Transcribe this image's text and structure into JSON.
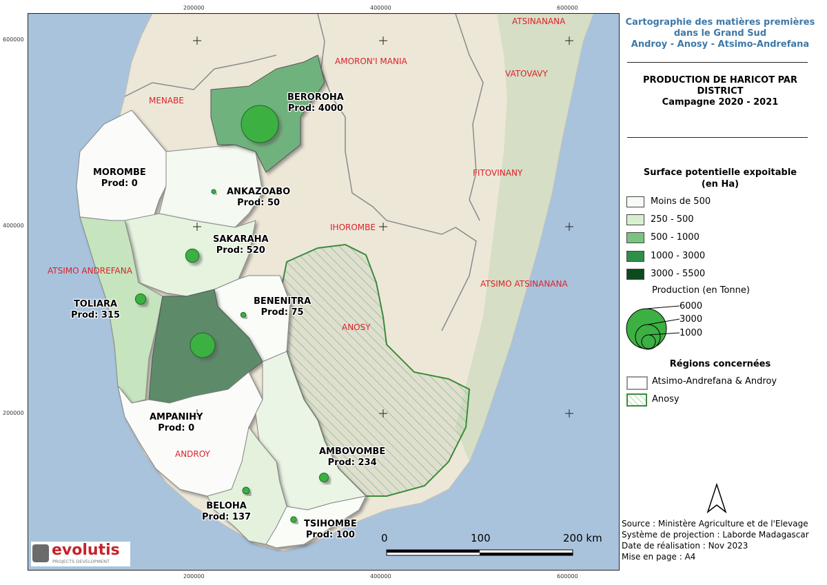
{
  "title": {
    "line1": "Cartographie des matières premières",
    "line2": "dans le Grand Sud",
    "line3": "Androy - Anosy - Atsimo-Andrefana"
  },
  "subtitle": {
    "line1": "PRODUCTION DE HARICOT PAR",
    "line2": "DISTRICT",
    "line3": "Campagne 2020 - 2021"
  },
  "legend": {
    "surface_title_1": "Surface potentielle expoitable",
    "surface_title_2": "(en Ha)",
    "classes": [
      {
        "label": "Moins de 500",
        "color": "#f7fbf5"
      },
      {
        "label": "250 - 500",
        "color": "#d8efcf"
      },
      {
        "label": "500 - 1000",
        "color": "#7cc282"
      },
      {
        "label": "1000 - 3000",
        "color": "#2f8f47"
      },
      {
        "label": "3000 - 5500",
        "color": "#0d4a1e"
      }
    ],
    "production_title": "Production (en Tonne)",
    "production_sizes": [
      "6000",
      "3000",
      "1000"
    ],
    "regions_title": "Régions concernées",
    "regions": [
      {
        "label": "Atsimo-Andrefana & Androy"
      },
      {
        "label": "Anosy"
      }
    ]
  },
  "footer": {
    "source": "Source : Ministère Agriculture et de l'Elevage",
    "projection": "Système de projection : Laborde Madagascar",
    "date": "Date de réalisation : Nov 2023",
    "layout": "Mise en page : A4"
  },
  "scalebar": {
    "s0": "0",
    "s1": "100",
    "s2": "200 km"
  },
  "coords": {
    "top": [
      "200000",
      "400000",
      "600000"
    ],
    "bottom": [
      "200000",
      "400000",
      "600000"
    ],
    "left": [
      "600000",
      "400000",
      "200000"
    ]
  },
  "regions_map": {
    "atsinanana": "ATSINANANA",
    "amoron": "AMORON'I MANIA",
    "vatovavy": "VATOVAVY",
    "menabe": "MENABE",
    "fitovinany": "FITOVINANY",
    "ihorombe": "IHOROMBE",
    "atsimo_andrefana": "ATSIMO ANDREFANA",
    "atsimo_atsinanana": "ATSIMO ATSINANANA",
    "anosy": "ANOSY",
    "androy": "ANDROY"
  },
  "districts": [
    {
      "name": "BEROROHA",
      "prod": "Prod: 4000",
      "value": 4000
    },
    {
      "name": "MOROMBE",
      "prod": "Prod: 0",
      "value": 0
    },
    {
      "name": "ANKAZOABO",
      "prod": "Prod: 50",
      "value": 50
    },
    {
      "name": "SAKARAHA",
      "prod": "Prod: 520",
      "value": 520
    },
    {
      "name": "TOLIARA",
      "prod": "Prod: 315",
      "value": 315
    },
    {
      "name": "BENENITRA",
      "prod": "Prod: 75",
      "value": 75
    },
    {
      "name": "AMPANIHY",
      "prod": "Prod: 0",
      "value": 0
    },
    {
      "name": "AMBOVOMBE",
      "prod": "Prod: 234",
      "value": 234
    },
    {
      "name": "BELOHA",
      "prod": "Prod: 137",
      "value": 137
    },
    {
      "name": "TSIHOMBE",
      "prod": "Prod: 100",
      "value": 100
    }
  ],
  "logo": {
    "brand": "evolutis",
    "tagline": "PROJECTS DEVELOPMENT"
  }
}
